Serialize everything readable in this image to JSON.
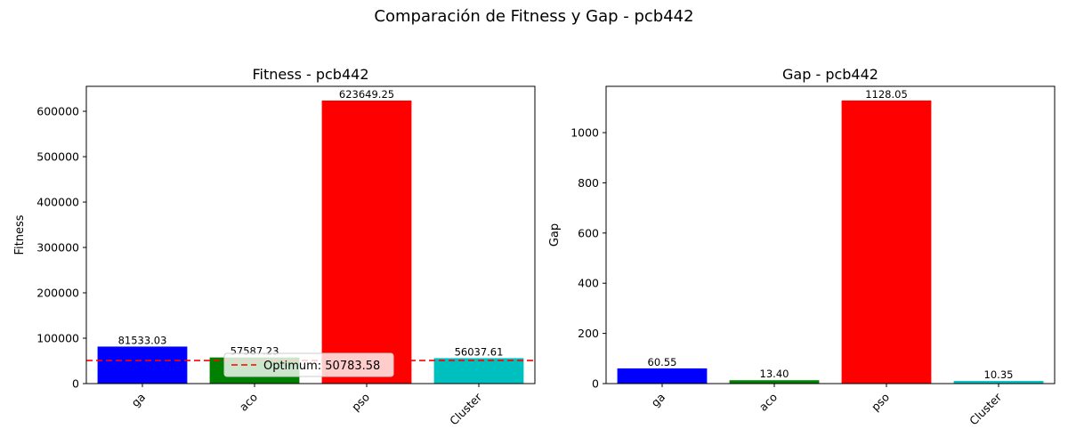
{
  "figure": {
    "title": "Comparación de Fitness y Gap - pcb442"
  },
  "chart_data": [
    {
      "type": "bar",
      "title": "Fitness - pcb442",
      "xlabel": "",
      "ylabel": "Fitness",
      "categories": [
        "ga",
        "aco",
        "pso",
        "Cluster"
      ],
      "values": [
        81533.03,
        57587.23,
        623649.25,
        56037.61
      ],
      "value_labels": [
        "81533.03",
        "57587.23",
        "623649.25",
        "56037.61"
      ],
      "colors": [
        "#0000ff",
        "#008000",
        "#ff0000",
        "#00bfbf"
      ],
      "ylim": [
        0,
        655000
      ],
      "yticks": [
        0,
        100000,
        200000,
        300000,
        400000,
        500000,
        600000
      ],
      "ytick_labels": [
        "0",
        "100000",
        "200000",
        "300000",
        "400000",
        "500000",
        "600000"
      ],
      "reference_line": {
        "value": 50783.58,
        "color": "#ff0000",
        "style": "dashed",
        "label": "Optimum: 50783.58"
      },
      "legend": {
        "placement": "lower-right",
        "entries": [
          "Optimum: 50783.58"
        ]
      },
      "grid": false,
      "xtick_rotation": 45
    },
    {
      "type": "bar",
      "title": "Gap - pcb442",
      "xlabel": "",
      "ylabel": "Gap",
      "categories": [
        "ga",
        "aco",
        "pso",
        "Cluster"
      ],
      "values": [
        60.55,
        13.4,
        1128.05,
        10.35
      ],
      "value_labels": [
        "60.55",
        "13.40",
        "1128.05",
        "10.35"
      ],
      "colors": [
        "#0000ff",
        "#008000",
        "#ff0000",
        "#00bfbf"
      ],
      "ylim": [
        0,
        1184.5
      ],
      "yticks": [
        0,
        200,
        400,
        600,
        800,
        1000
      ],
      "ytick_labels": [
        "0",
        "200",
        "400",
        "600",
        "800",
        "1000"
      ],
      "grid": false,
      "xtick_rotation": 45
    }
  ]
}
